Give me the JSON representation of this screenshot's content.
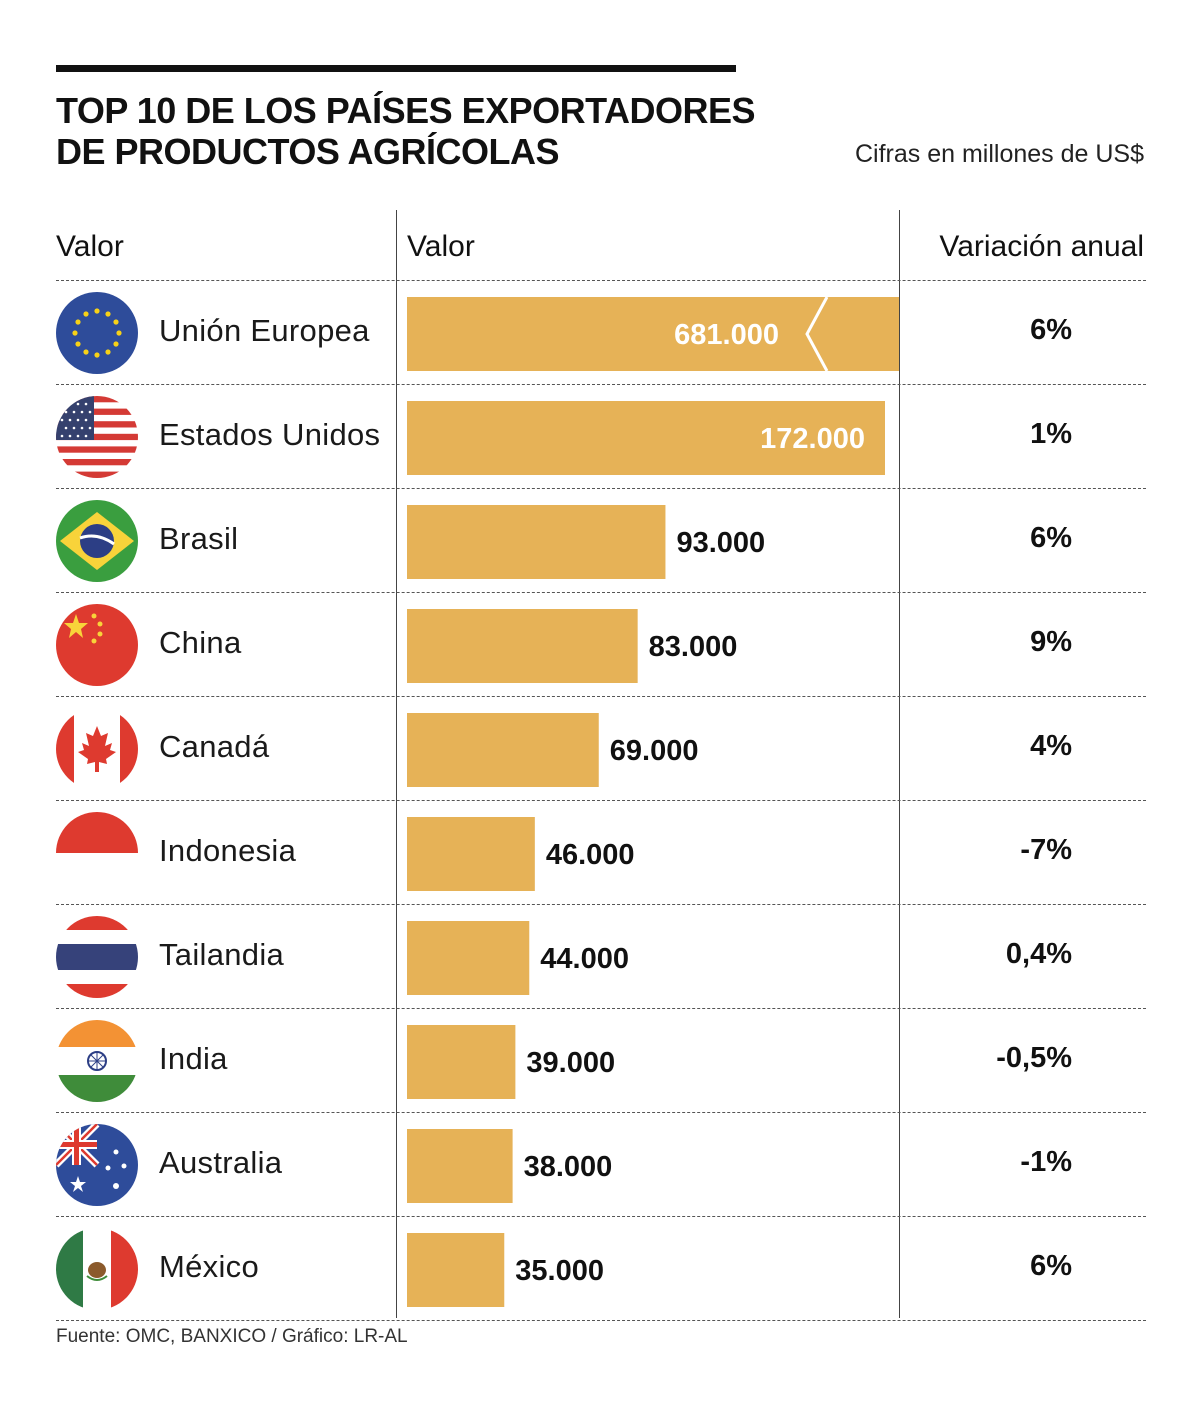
{
  "title": "TOP 10 DE LOS PAÍSES EXPORTADORES DE PRODUCTOS AGRÍCOLAS",
  "subtitle": "Cifras en millones de US$",
  "headers": {
    "col1": "Valor",
    "col2": "Valor",
    "col3": "Variación anual"
  },
  "source": "Fuente: OMC, BANXICO / Gráfico: LR-AL",
  "colors": {
    "bar": "#E6B257",
    "inside_label": "#ffffff",
    "outside_label": "#111111"
  },
  "chart_data": {
    "type": "bar",
    "orientation": "horizontal",
    "title": "TOP 10 DE LOS PAÍSES EXPORTADORES DE PRODUCTOS AGRÍCOLAS",
    "unit": "Cifras en millones de US$",
    "categories": [
      "Unión Europea",
      "Estados Unidos",
      "Brasil",
      "China",
      "Canadá",
      "Indonesia",
      "Tailandia",
      "India",
      "Australia",
      "México"
    ],
    "values": [
      681000,
      172000,
      93000,
      83000,
      69000,
      46000,
      44000,
      39000,
      38000,
      35000
    ],
    "value_labels": [
      "681.000",
      "172.000",
      "93.000",
      "83.000",
      "69.000",
      "46.000",
      "44.000",
      "39.000",
      "38.000",
      "35.000"
    ],
    "broken_axis_first_bar": true,
    "variacion_anual": [
      "6%",
      "1%",
      "6%",
      "9%",
      "4%",
      "-7%",
      "0,4%",
      "-0,5%",
      "-1%",
      "6%"
    ]
  },
  "rows": [
    {
      "country": "Unión Europea",
      "flag": "eu-flag-icon",
      "value": "681.000",
      "var": "6%"
    },
    {
      "country": "Estados Unidos",
      "flag": "usa-flag-icon",
      "value": "172.000",
      "var": "1%"
    },
    {
      "country": "Brasil",
      "flag": "brazil-flag-icon",
      "value": "93.000",
      "var": "6%"
    },
    {
      "country": "China",
      "flag": "china-flag-icon",
      "value": "83.000",
      "var": "9%"
    },
    {
      "country": "Canadá",
      "flag": "canada-flag-icon",
      "value": "69.000",
      "var": "4%"
    },
    {
      "country": "Indonesia",
      "flag": "indonesia-flag-icon",
      "value": "46.000",
      "var": "-7%"
    },
    {
      "country": "Tailandia",
      "flag": "thailand-flag-icon",
      "value": "44.000",
      "var": "0,4%"
    },
    {
      "country": "India",
      "flag": "india-flag-icon",
      "value": "39.000",
      "var": "-0,5%"
    },
    {
      "country": "Australia",
      "flag": "australia-flag-icon",
      "value": "38.000",
      "var": "-1%"
    },
    {
      "country": "México",
      "flag": "mexico-flag-icon",
      "value": "35.000",
      "var": "6%"
    }
  ]
}
